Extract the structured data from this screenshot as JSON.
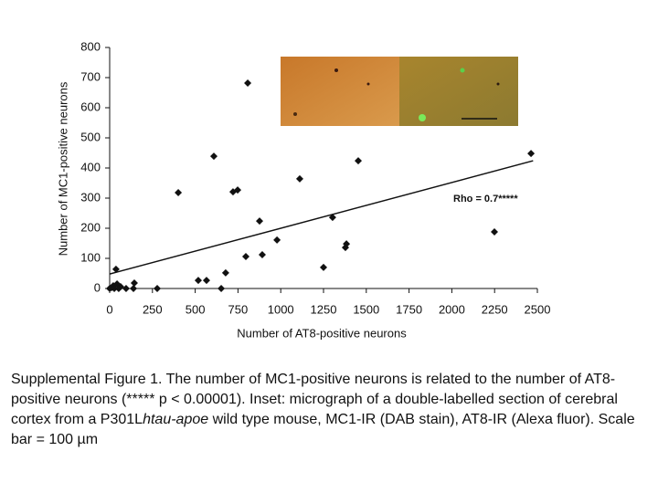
{
  "chart_data": {
    "type": "scatter",
    "x_label": "Number of AT8-positive neurons",
    "y_label": "Number of MC1-positive neurons",
    "annotation": "Rho = 0.7*****",
    "color": "#111111",
    "xlim": [
      0,
      2500
    ],
    "xticks": [
      0,
      250,
      500,
      750,
      1000,
      1250,
      1500,
      1750,
      2000,
      2250,
      2500
    ],
    "ylim": [
      0,
      800
    ],
    "yticks": [
      0,
      100,
      200,
      300,
      400,
      500,
      600,
      700,
      800
    ],
    "x": [
      807,
      2463,
      609,
      1453,
      1111,
      401,
      721,
      748,
      1303,
      876,
      2249,
      978,
      1384,
      1378,
      796,
      892,
      1250,
      37,
      678,
      518,
      566,
      144,
      652,
      278,
      0,
      21,
      43,
      64,
      27,
      96,
      139,
      53,
      11
    ],
    "values": [
      682,
      448,
      439,
      424,
      364,
      318,
      321,
      327,
      236,
      224,
      188,
      161,
      148,
      136,
      106,
      112,
      70,
      64,
      52,
      27,
      27,
      18,
      0,
      0,
      0,
      9,
      15,
      6,
      0,
      0,
      0,
      0,
      3
    ],
    "trend": {
      "x": [
        0,
        2475
      ],
      "values": [
        48,
        424
      ]
    }
  },
  "caption": [
    "Supplemental Figure 1. The number of MC1-positive neurons is related to the number of AT8-positive neurons (***** p < 0.00001). Inset: micrograph of a double-labelled section of cerebral cortex from a P301L",
    "htau-apoe",
    " wild type mouse, MC1-IR (DAB stain), AT8-IR (Alexa fluor). Scale bar = 100 µm"
  ]
}
